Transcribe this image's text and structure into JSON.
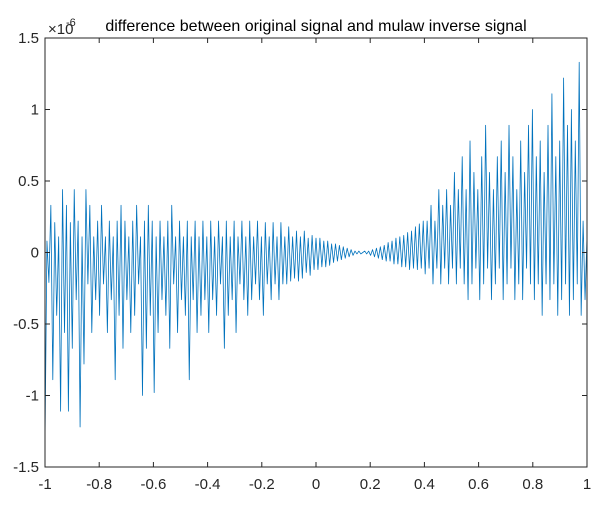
{
  "chart_data": {
    "type": "line",
    "title": "difference between original signal and mulaw inverse signal",
    "xlabel": "",
    "ylabel": "",
    "axis_exponent_label": "×10",
    "axis_exponent_power": "-6",
    "xlim": [
      -1,
      1
    ],
    "ylim": [
      -1.5,
      1.5
    ],
    "x_ticks": [
      -1,
      -0.8,
      -0.6,
      -0.4,
      -0.2,
      0,
      0.2,
      0.4,
      0.6,
      0.8,
      1
    ],
    "x_tick_labels": [
      "-1",
      "-0.8",
      "-0.6",
      "-0.4",
      "-0.2",
      "0",
      "0.2",
      "0.4",
      "0.6",
      "0.8",
      "1"
    ],
    "y_ticks": [
      -1.5,
      -1,
      -0.5,
      0,
      0.5,
      1,
      1.5
    ],
    "y_tick_labels": [
      "-1.5",
      "-1",
      "-0.5",
      "0",
      "0.5",
      "1",
      "1.5"
    ],
    "grid": false,
    "series": [
      {
        "color": "#0072BD",
        "x_start": -1,
        "x_end": 1,
        "values": [
          -1.33,
          0.08,
          -0.21,
          0.33,
          -0.89,
          0.21,
          -0.44,
          0.11,
          -1.11,
          0.44,
          -0.56,
          0.33,
          -1.11,
          0.21,
          -0.67,
          0.44,
          -0.33,
          0.22,
          -1.22,
          0.11,
          -0.78,
          0.44,
          -0.22,
          0.33,
          -0.56,
          0.11,
          -0.33,
          0.22,
          -0.44,
          0.33,
          -0.22,
          0.11,
          -0.56,
          0.22,
          -0.33,
          0.11,
          -0.89,
          0.22,
          -0.44,
          0.33,
          -0.67,
          0.22,
          -0.33,
          0.11,
          -0.56,
          0.22,
          -0.44,
          0.33,
          -0.22,
          0.11,
          -1.0,
          0.22,
          -0.67,
          0.33,
          -0.44,
          0.22,
          -0.98,
          0.11,
          -0.56,
          0.22,
          -0.33,
          0.11,
          -0.44,
          0.22,
          -0.67,
          0.33,
          -0.22,
          0.11,
          -0.56,
          0.22,
          -0.33,
          0.11,
          -0.44,
          0.22,
          -0.89,
          0.11,
          -0.33,
          0.22,
          -0.56,
          0.11,
          -0.44,
          0.22,
          -0.33,
          0.11,
          -0.56,
          0.22,
          -0.33,
          0.11,
          -0.44,
          0.22,
          -0.22,
          0.11,
          -0.67,
          0.22,
          -0.44,
          0.11,
          -0.33,
          0.22,
          -0.56,
          0.11,
          -0.22,
          0.22,
          -0.33,
          0.11,
          -0.44,
          0.22,
          -0.33,
          0.11,
          -0.22,
          0.22,
          -0.33,
          0.11,
          -0.44,
          0.21,
          -0.22,
          0.11,
          -0.33,
          0.21,
          -0.22,
          0.11,
          -0.33,
          0.21,
          -0.22,
          0.11,
          -0.22,
          0.18,
          -0.2,
          0.11,
          -0.18,
          0.15,
          -0.2,
          0.11,
          -0.18,
          0.15,
          -0.14,
          0.1,
          -0.16,
          0.12,
          -0.12,
          0.1,
          -0.12,
          0.1,
          -0.1,
          0.08,
          -0.1,
          0.08,
          -0.09,
          0.06,
          -0.07,
          0.06,
          -0.06,
          0.05,
          -0.05,
          0.04,
          -0.04,
          0.03,
          -0.03,
          0.02,
          -0.02,
          0.01,
          -0.01,
          0.01,
          -0.01,
          0.0,
          0.01,
          -0.01,
          0.01,
          -0.02,
          0.02,
          -0.03,
          0.03,
          -0.04,
          0.04,
          -0.05,
          0.05,
          -0.06,
          0.07,
          -0.06,
          0.08,
          -0.08,
          0.1,
          -0.08,
          0.11,
          -0.1,
          0.12,
          -0.1,
          0.14,
          -0.12,
          0.15,
          -0.11,
          0.18,
          -0.12,
          0.2,
          -0.11,
          0.22,
          -0.15,
          0.22,
          -0.11,
          0.33,
          -0.22,
          0.22,
          -0.11,
          0.44,
          -0.22,
          0.33,
          -0.11,
          0.44,
          -0.22,
          0.33,
          -0.11,
          0.56,
          -0.22,
          0.44,
          -0.11,
          0.67,
          -0.22,
          0.44,
          -0.33,
          0.78,
          -0.22,
          0.56,
          -0.11,
          0.44,
          -0.33,
          0.67,
          -0.22,
          0.89,
          -0.11,
          0.56,
          -0.33,
          0.44,
          -0.22,
          0.67,
          -0.11,
          0.78,
          -0.33,
          0.56,
          -0.22,
          0.89,
          -0.11,
          0.67,
          -0.33,
          0.44,
          -0.22,
          0.78,
          -0.33,
          0.56,
          -0.11,
          0.89,
          -0.22,
          1.0,
          -0.33,
          0.67,
          -0.22,
          0.78,
          -0.44,
          0.56,
          -0.22,
          0.89,
          -0.33,
          1.11,
          -0.22,
          0.67,
          -0.44,
          0.78,
          -0.33,
          1.22,
          -0.22,
          0.89,
          -0.44,
          1.0,
          -0.33,
          0.78,
          -0.22,
          1.33,
          -0.44,
          0.22,
          -0.33,
          0.11
        ]
      }
    ]
  }
}
